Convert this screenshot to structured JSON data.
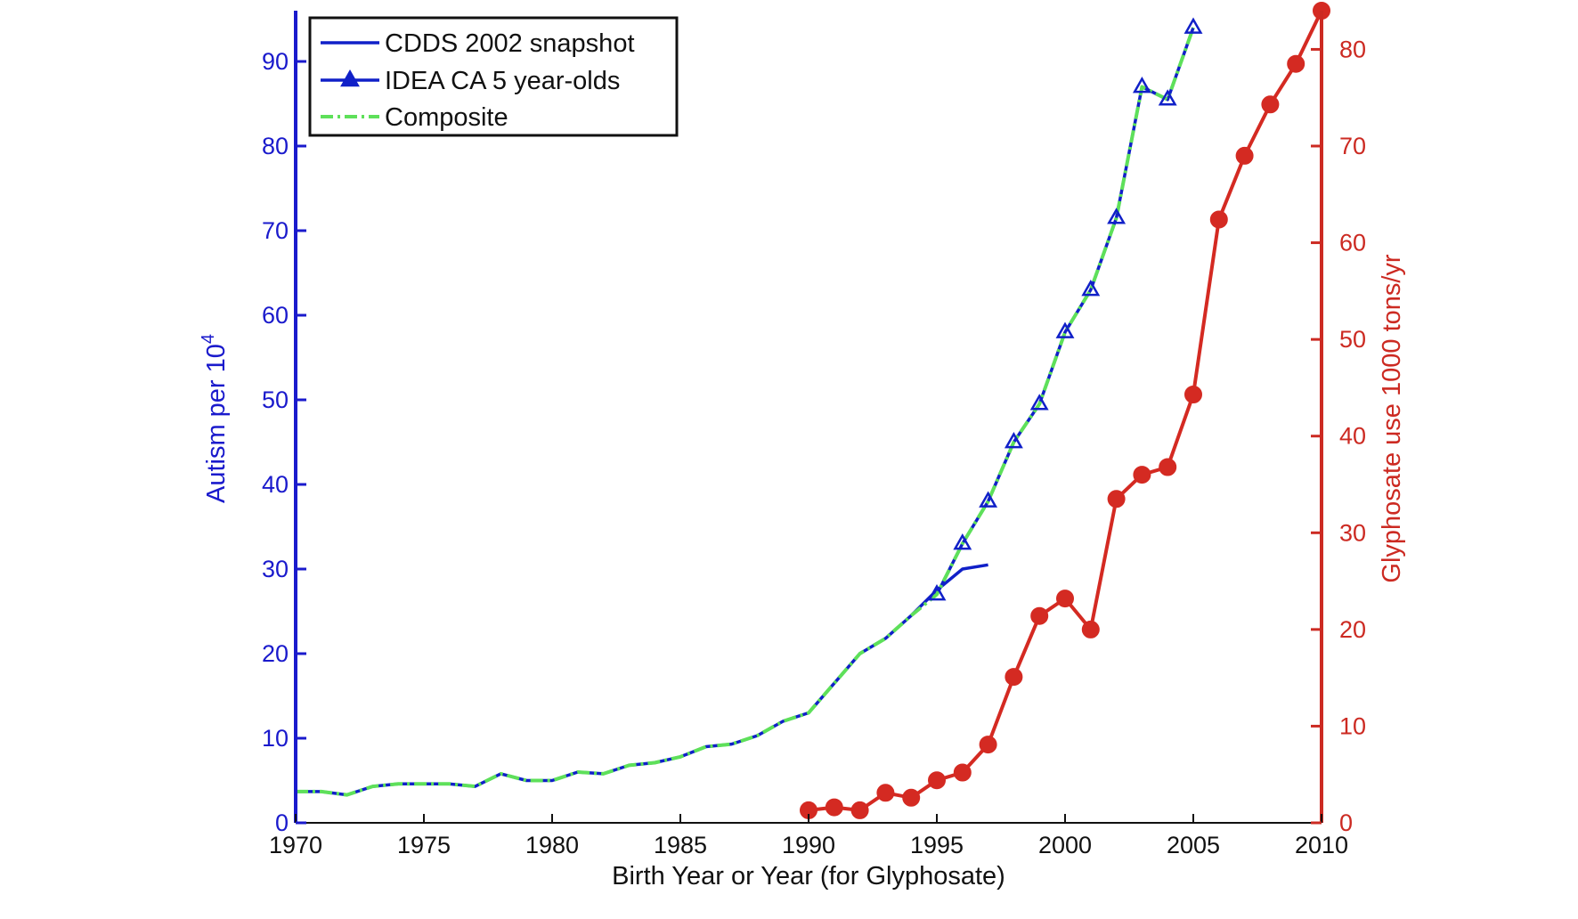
{
  "chart_data": {
    "type": "line",
    "title": "",
    "xlabel": "Birth Year or Year (for Glyphosate)",
    "ylabel_left": {
      "text": "Autism per 10",
      "superscript": "4"
    },
    "ylabel_right": "Glyphosate use 1000 tons/yr",
    "xlim": [
      1970,
      2010
    ],
    "ylim_left": [
      0,
      96
    ],
    "ylim_right": [
      0,
      84
    ],
    "x_ticks": [
      1970,
      1975,
      1980,
      1985,
      1990,
      1995,
      2000,
      2005,
      2010
    ],
    "y_left_ticks": [
      0,
      10,
      20,
      30,
      40,
      50,
      60,
      70,
      80,
      90
    ],
    "y_right_ticks": [
      0,
      10,
      20,
      30,
      40,
      50,
      60,
      70,
      80
    ],
    "grid": false,
    "legend_position": "top-left",
    "colors": {
      "left_axis": "#1a1acc",
      "right_axis": "#cc2a22",
      "cdds": "#1020c8",
      "idea": "#1020c8",
      "composite": "#5ee05a",
      "glyphosate": "#d42a22"
    },
    "series": [
      {
        "name": "CDDS 2002 snapshot",
        "axis": "left",
        "marker": "none",
        "x": [
          1970,
          1971,
          1972,
          1973,
          1974,
          1975,
          1976,
          1977,
          1978,
          1979,
          1980,
          1981,
          1982,
          1983,
          1984,
          1985,
          1986,
          1987,
          1988,
          1989,
          1990,
          1991,
          1992,
          1993,
          1994,
          1995,
          1996,
          1997
        ],
        "y": [
          3.7,
          3.7,
          3.3,
          4.3,
          4.6,
          4.6,
          4.6,
          4.3,
          5.8,
          5.0,
          5.0,
          6.0,
          5.8,
          6.8,
          7.1,
          7.8,
          9.0,
          9.3,
          10.3,
          12.0,
          13.0,
          16.5,
          20.0,
          21.8,
          24.5,
          27.5,
          30.0,
          30.5
        ]
      },
      {
        "name": "IDEA CA 5 year-olds",
        "axis": "left",
        "marker": "triangle",
        "x": [
          1995,
          1996,
          1997,
          1998,
          1999,
          2000,
          2001,
          2002,
          2003,
          2004,
          2005
        ],
        "y": [
          27.0,
          33.0,
          38.0,
          45.0,
          49.5,
          58.0,
          63.0,
          71.5,
          87.0,
          85.5,
          94.0
        ]
      },
      {
        "name": "Composite",
        "axis": "left",
        "marker": "none",
        "x": [
          1970,
          1971,
          1972,
          1973,
          1974,
          1975,
          1976,
          1977,
          1978,
          1979,
          1980,
          1981,
          1982,
          1983,
          1984,
          1985,
          1986,
          1987,
          1988,
          1989,
          1990,
          1991,
          1992,
          1993,
          1994,
          1995,
          1996,
          1997,
          1998,
          1999,
          2000,
          2001,
          2002,
          2003,
          2004,
          2005
        ],
        "y": [
          3.7,
          3.7,
          3.3,
          4.3,
          4.6,
          4.6,
          4.6,
          4.3,
          5.8,
          5.0,
          5.0,
          6.0,
          5.8,
          6.8,
          7.1,
          7.8,
          9.0,
          9.3,
          10.3,
          12.0,
          13.0,
          16.5,
          20.0,
          21.8,
          24.5,
          27.0,
          33.0,
          38.0,
          45.0,
          49.5,
          58.0,
          63.0,
          71.5,
          87.0,
          85.5,
          94.0
        ]
      },
      {
        "axis": "right",
        "marker": "circle",
        "x": [
          1990,
          1991,
          1992,
          1993,
          1994,
          1995,
          1996,
          1997,
          1998,
          1999,
          2000,
          2001,
          2002,
          2003,
          2004,
          2005,
          2006,
          2007,
          2008,
          2009,
          2010
        ],
        "y": [
          1.3,
          1.6,
          1.3,
          3.1,
          2.6,
          4.4,
          5.2,
          8.1,
          15.1,
          21.4,
          23.2,
          20.0,
          33.5,
          36.0,
          36.8,
          44.3,
          62.4,
          69.0,
          74.3,
          78.5,
          84.0
        ]
      }
    ]
  }
}
